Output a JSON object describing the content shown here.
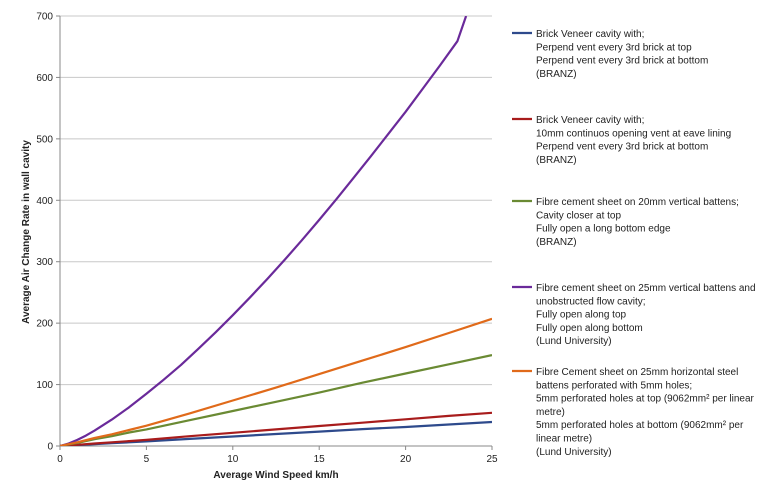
{
  "chart_data": {
    "type": "line",
    "title": "",
    "xlabel": "Average Wind Speed km/h",
    "ylabel": "Average  Air Change Rate in wall cavity",
    "xlim": [
      0,
      25
    ],
    "ylim": [
      0,
      700
    ],
    "xticks": [
      0,
      5,
      10,
      15,
      20,
      25
    ],
    "yticks": [
      0,
      100,
      200,
      300,
      400,
      500,
      600,
      700
    ],
    "grid": "horizontal",
    "legend_position": "right",
    "series": [
      {
        "name_lines": [
          "Brick Veneer cavity with;",
          "Perpend vent every 3rd brick at top",
          "Perpend vent every 3rd brick  at bottom",
          "(BRANZ)"
        ],
        "color": "#2E4A8C",
        "x": [
          0,
          1,
          2,
          3,
          4,
          5,
          7.5,
          10,
          12.5,
          15,
          17.5,
          20,
          22.5,
          25
        ],
        "y": [
          0,
          1.5,
          3,
          4.5,
          6,
          7.5,
          11.5,
          15.5,
          19.5,
          23.5,
          27.5,
          31,
          35,
          39
        ]
      },
      {
        "name_lines": [
          "Brick Veneer cavity with;",
          "10mm continuos opening vent at eave lining",
          "Perpend vent every 3rd brick at bottom",
          "(BRANZ)"
        ],
        "color": "#A81C1C",
        "x": [
          0,
          1,
          2,
          3,
          4,
          5,
          7.5,
          10,
          12.5,
          15,
          17.5,
          20,
          22.5,
          25
        ],
        "y": [
          0,
          2,
          4,
          6,
          8,
          10,
          16,
          21.5,
          27,
          32.5,
          38,
          43.5,
          49,
          54
        ]
      },
      {
        "name_lines": [
          "Fibre cement sheet on 20mm vertical battens;",
          "Cavity closer at top",
          "Fully open a long bottom edge",
          "(BRANZ)"
        ],
        "color": "#6A8A33",
        "x": [
          0,
          1,
          2,
          3,
          4,
          5,
          7.5,
          10,
          12.5,
          15,
          17.5,
          20,
          22.5,
          25
        ],
        "y": [
          0,
          5,
          11,
          16,
          22,
          27,
          42,
          57,
          72,
          87,
          103,
          118,
          133,
          148
        ]
      },
      {
        "name_lines": [
          "Fibre cement sheet on 25mm vertical battens and",
          "unobstructed flow cavity;",
          "Fully open along top",
          "Fully open along bottom",
          "(Lund University)"
        ],
        "color": "#6A2A9A",
        "x": [
          0,
          0.5,
          1,
          1.5,
          2,
          3,
          4,
          5,
          6,
          7,
          8,
          9,
          10,
          11,
          12,
          13,
          14,
          15,
          16,
          17,
          18,
          19,
          20,
          21,
          22,
          23,
          23.5
        ],
        "y": [
          0,
          4,
          10,
          17,
          25,
          43,
          63,
          85,
          108,
          132,
          158,
          185,
          213,
          242,
          272,
          303,
          335,
          368,
          402,
          437,
          472,
          508,
          544,
          582,
          620,
          659,
          700
        ]
      },
      {
        "name_lines": [
          "Fibre Cement sheet on 25mm horizontal steel",
          "battens perforated with 5mm holes;",
          "5mm perforated holes at top (9062mm² per linear",
          "metre)",
          "5mm perforated holes at bottom (9062mm² per",
          "linear metre)",
          "(Lund University)"
        ],
        "color": "#E06A1A",
        "x": [
          0,
          1,
          2,
          3,
          4,
          5,
          7.5,
          10,
          12.5,
          15,
          17.5,
          20,
          22.5,
          25
        ],
        "y": [
          0,
          6,
          13,
          19,
          26,
          33,
          53,
          74,
          95,
          117,
          139,
          161,
          184,
          207
        ]
      }
    ]
  }
}
